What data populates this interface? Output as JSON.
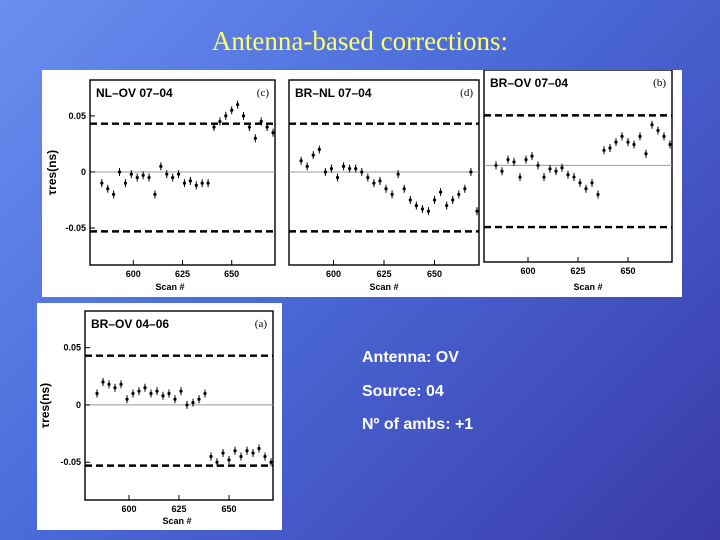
{
  "slide": {
    "title": "Antenna-based corrections:",
    "info": {
      "antenna": "Antenna: OV",
      "source": "Source: 04",
      "ambs": "Nº of ambs: +1"
    }
  },
  "chart_data": [
    {
      "type": "scatter",
      "title": "NL–OV   07–04",
      "panel_tag": "(c)",
      "ylabel": "τres(ns)",
      "xlabel": "Scan #",
      "xticks": [
        "600",
        "625",
        "650"
      ],
      "yticks": [
        "0.05",
        "0",
        "-0.05"
      ],
      "xlim": [
        578,
        672
      ],
      "ylim": [
        -0.083,
        0.082
      ],
      "dashed_levels": [
        0.043,
        -0.053
      ],
      "points": {
        "x": [
          584,
          587,
          590,
          593,
          596,
          599,
          602,
          605,
          608,
          611,
          614,
          617,
          620,
          623,
          626,
          629,
          632,
          635,
          638,
          641,
          644,
          647,
          650,
          653,
          656,
          659,
          662,
          665,
          668,
          671
        ],
        "y": [
          -0.01,
          -0.015,
          -0.02,
          0.0,
          -0.01,
          -0.002,
          -0.005,
          -0.003,
          -0.005,
          -0.02,
          0.005,
          -0.002,
          -0.005,
          -0.002,
          -0.01,
          -0.008,
          -0.012,
          -0.01,
          -0.01,
          0.04,
          0.045,
          0.05,
          0.055,
          0.06,
          0.05,
          0.04,
          0.03,
          0.045,
          0.04,
          0.035
        ]
      }
    },
    {
      "type": "scatter",
      "title": "BR–NL   07–04",
      "panel_tag": "(d)",
      "ylabel": "",
      "xlabel": "Scan #",
      "xticks": [
        "600",
        "625",
        "650"
      ],
      "yticks": [],
      "xlim": [
        578,
        672
      ],
      "ylim": [
        -0.083,
        0.082
      ],
      "dashed_levels": [
        0.043,
        -0.053
      ],
      "points": {
        "x": [
          584,
          587,
          590,
          593,
          596,
          599,
          602,
          605,
          608,
          611,
          614,
          617,
          620,
          623,
          626,
          629,
          632,
          635,
          638,
          641,
          644,
          647,
          650,
          653,
          656,
          659,
          662,
          665,
          668,
          671
        ],
        "y": [
          0.01,
          0.005,
          0.015,
          0.02,
          0.0,
          0.003,
          -0.005,
          0.005,
          0.003,
          0.003,
          0.0,
          -0.005,
          -0.01,
          -0.008,
          -0.015,
          -0.02,
          -0.002,
          -0.015,
          -0.025,
          -0.03,
          -0.033,
          -0.035,
          -0.025,
          -0.018,
          -0.03,
          -0.025,
          -0.02,
          -0.015,
          0.0,
          -0.035
        ]
      }
    },
    {
      "type": "scatter",
      "title": "BR–OV   07–04",
      "panel_tag": "(b)",
      "ylabel": "",
      "xlabel": "Scan #",
      "xticks": [
        "600",
        "625",
        "650"
      ],
      "yticks": [],
      "xlim": [
        578,
        672
      ],
      "ylim": [
        -0.083,
        0.082
      ],
      "dashed_levels": [
        0.043,
        -0.053
      ],
      "points": {
        "x": [
          584,
          587,
          590,
          593,
          596,
          599,
          602,
          605,
          608,
          611,
          614,
          617,
          620,
          623,
          626,
          629,
          632,
          635,
          638,
          641,
          644,
          647,
          650,
          653,
          656,
          659,
          662,
          665,
          668,
          671
        ],
        "y": [
          0.0,
          -0.005,
          0.005,
          0.003,
          -0.01,
          0.005,
          0.008,
          0.0,
          -0.01,
          -0.003,
          -0.005,
          -0.002,
          -0.008,
          -0.01,
          -0.015,
          -0.02,
          -0.015,
          -0.025,
          0.013,
          0.015,
          0.02,
          0.025,
          0.02,
          0.018,
          0.025,
          0.01,
          0.035,
          0.03,
          0.025,
          0.018
        ]
      }
    },
    {
      "type": "scatter",
      "title": "BR–OV   04–06",
      "panel_tag": "(a)",
      "ylabel": "τres(ns)",
      "xlabel": "Scan #",
      "xticks": [
        "600",
        "625",
        "650"
      ],
      "yticks": [
        "0.05",
        "0",
        "-0.05"
      ],
      "xlim": [
        578,
        672
      ],
      "ylim": [
        -0.083,
        0.082
      ],
      "dashed_levels": [
        0.043,
        -0.053
      ],
      "points": {
        "x": [
          584,
          587,
          590,
          593,
          596,
          599,
          602,
          605,
          608,
          611,
          614,
          617,
          620,
          623,
          626,
          629,
          632,
          635,
          638,
          641,
          644,
          647,
          650,
          653,
          656,
          659,
          662,
          665,
          668,
          671
        ],
        "y": [
          0.01,
          0.02,
          0.018,
          0.015,
          0.018,
          0.005,
          0.01,
          0.012,
          0.015,
          0.01,
          0.012,
          0.008,
          0.01,
          0.005,
          0.012,
          0.0,
          0.002,
          0.005,
          0.01,
          -0.045,
          -0.05,
          -0.042,
          -0.048,
          -0.04,
          -0.045,
          -0.04,
          -0.042,
          -0.038,
          -0.045,
          -0.05
        ]
      }
    }
  ]
}
